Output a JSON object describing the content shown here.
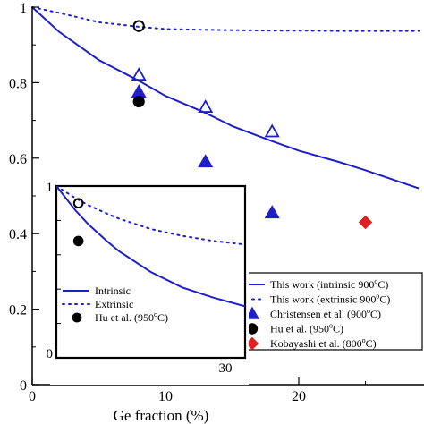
{
  "chart_data": {
    "type": "line",
    "xlabel": "Ge fraction (%)",
    "ylabel": "",
    "xlim": [
      0,
      29
    ],
    "ylim": [
      0,
      1
    ],
    "x_ticks": [
      "0",
      "10",
      "20"
    ],
    "y_ticks": [
      "0",
      "0.2",
      "0.4",
      "0.6",
      "0.8",
      "1"
    ],
    "series": [
      {
        "name": "This work (intrinsic 900",
        "sup": "o",
        "suffix": "C)",
        "kind": "solid-line",
        "color": "#1f1fc8",
        "x": [
          0,
          2,
          5,
          8,
          10,
          13,
          15,
          18,
          20,
          23,
          25,
          29
        ],
        "y": [
          1.0,
          0.935,
          0.86,
          0.805,
          0.765,
          0.72,
          0.685,
          0.645,
          0.62,
          0.59,
          0.568,
          0.52
        ]
      },
      {
        "name": "This work (extrinsic 900",
        "sup": "o",
        "suffix": "C)",
        "kind": "dotted-line",
        "color": "#1f1fc8",
        "x": [
          0,
          2,
          5,
          8,
          10,
          13,
          15,
          18,
          20,
          23,
          25,
          29
        ],
        "y": [
          1.0,
          0.985,
          0.96,
          0.948,
          0.942,
          0.94,
          0.939,
          0.938,
          0.938,
          0.937,
          0.937,
          0.937
        ]
      },
      {
        "name": "Christensen et al. (900",
        "sup": "o",
        "suffix": "C)",
        "kind": "filled-triangle",
        "color": "#1f1fc8",
        "x": [
          8,
          13,
          18
        ],
        "y": [
          0.775,
          0.59,
          0.455
        ]
      },
      {
        "name": "Christensen et al. open",
        "kind": "open-triangle",
        "color": "#1f1fc8",
        "legend": false,
        "x": [
          8,
          13,
          18
        ],
        "y": [
          0.82,
          0.735,
          0.67
        ]
      },
      {
        "name": "Hu et al. (950",
        "sup": "o",
        "suffix": "C)",
        "kind": "filled-circle",
        "color": "#000000",
        "x": [
          8
        ],
        "y": [
          0.75
        ]
      },
      {
        "name": "Hu et al. open",
        "kind": "open-circle",
        "color": "#000000",
        "legend": false,
        "x": [
          8
        ],
        "y": [
          0.95
        ]
      },
      {
        "name": "Kobayashi et al. (800",
        "sup": "o",
        "suffix": "C)",
        "kind": "diamond",
        "color": "#e02020",
        "x": [
          25
        ],
        "y": [
          0.43
        ]
      }
    ],
    "inset": {
      "x_ticks": [
        "30"
      ],
      "y_ticks": [
        "1",
        "0"
      ],
      "xlim": [
        0,
        30
      ],
      "ylim": [
        0,
        1
      ],
      "series": [
        {
          "name": "Intrinsic",
          "kind": "solid-line",
          "color": "#1f1fc8",
          "x": [
            0,
            3,
            5,
            8,
            10,
            15,
            20,
            25,
            30
          ],
          "y": [
            1.0,
            0.86,
            0.78,
            0.68,
            0.62,
            0.5,
            0.41,
            0.35,
            0.3
          ]
        },
        {
          "name": "Extrinsic",
          "kind": "dotted-line",
          "color": "#1f1fc8",
          "x": [
            0,
            3,
            5,
            8,
            10,
            15,
            20,
            25,
            30
          ],
          "y": [
            1.0,
            0.93,
            0.89,
            0.84,
            0.81,
            0.75,
            0.71,
            0.68,
            0.66
          ]
        },
        {
          "name": "Hu et al. (950",
          "sup": "o",
          "suffix": "C)",
          "kind": "filled-circle",
          "color": "#000000",
          "x": [
            3.5
          ],
          "y": [
            0.68
          ]
        },
        {
          "name": "Hu et al. open",
          "kind": "open-circle",
          "color": "#000000",
          "legend": false,
          "x": [
            3.5
          ],
          "y": [
            0.9
          ]
        }
      ]
    }
  }
}
